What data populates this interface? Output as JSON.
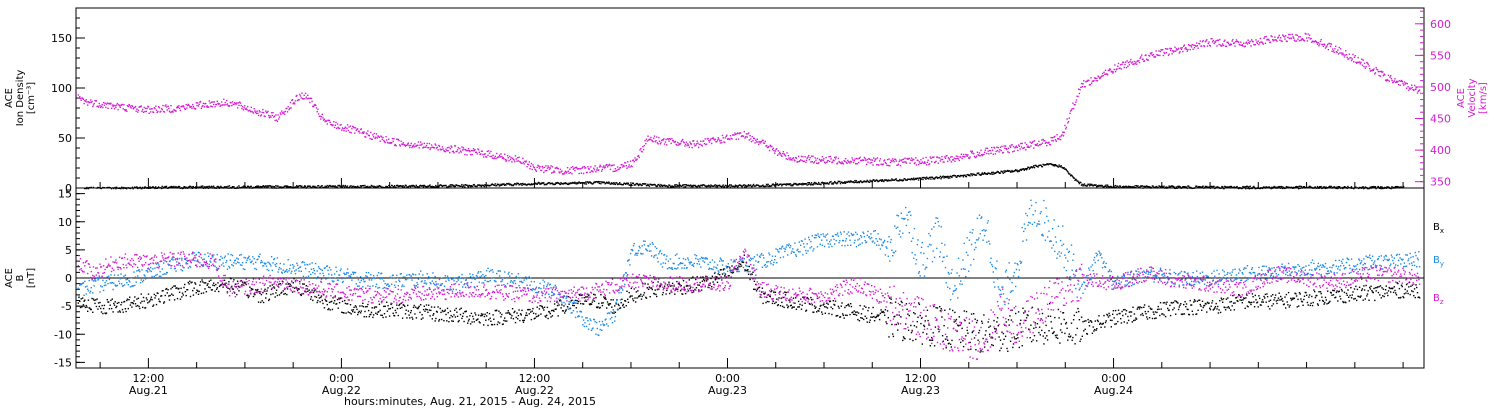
{
  "figure": {
    "footer_label": "hours:minutes, Aug. 21, 2015 - Aug. 24, 2015"
  },
  "colors": {
    "black": "#000000",
    "magenta": "#d21ed2",
    "blue": "#1e8ce6"
  },
  "chart_data": [
    {
      "type": "scatter",
      "panel": "ion-density-and-velocity",
      "ylabel_lines": [
        "ACE",
        "Ion Density",
        "[cm⁻³]"
      ],
      "ylim": [
        0,
        180
      ],
      "yticks": [
        0,
        50,
        100,
        150
      ],
      "right_axis": {
        "label_lines": [
          "ACE",
          "Velocity",
          "[km/s]"
        ],
        "ylim": [
          340,
          625
        ],
        "yticks": [
          350,
          400,
          450,
          500,
          550,
          600
        ]
      },
      "x_unit": "hours since Aug. 21, 2015 00:00",
      "xlim": [
        7.5,
        91.3
      ],
      "zero_line": 0,
      "series": [
        {
          "color": "black",
          "axis": "left",
          "points": [
            [
              8,
              0
            ],
            [
              12,
              1
            ],
            [
              16,
              1.5
            ],
            [
              20,
              1.8
            ],
            [
              24,
              2
            ],
            [
              28,
              2.2
            ],
            [
              32,
              3
            ],
            [
              36,
              5
            ],
            [
              40,
              6
            ],
            [
              44,
              3
            ],
            [
              48,
              2.5
            ],
            [
              52,
              4
            ],
            [
              56,
              7
            ],
            [
              60,
              10
            ],
            [
              62,
              12
            ],
            [
              64,
              15
            ],
            [
              66,
              18
            ],
            [
              67,
              22
            ],
            [
              68,
              24
            ],
            [
              68.8,
              22
            ],
            [
              69.5,
              10
            ],
            [
              70,
              4
            ],
            [
              72,
              2
            ],
            [
              76,
              1.5
            ],
            [
              80,
              1.2
            ],
            [
              84,
              1.2
            ],
            [
              88,
              1
            ],
            [
              90,
              1
            ]
          ]
        },
        {
          "color": "magenta",
          "axis": "right",
          "points": [
            [
              7.6,
              485
            ],
            [
              8,
              478
            ],
            [
              10,
              470
            ],
            [
              12,
              465
            ],
            [
              14,
              468
            ],
            [
              16,
              475
            ],
            [
              17,
              476
            ],
            [
              18,
              468
            ],
            [
              19,
              460
            ],
            [
              20,
              452
            ],
            [
              21,
              478
            ],
            [
              21.5,
              488
            ],
            [
              22,
              482
            ],
            [
              22.5,
              460
            ],
            [
              23,
              445
            ],
            [
              25,
              430
            ],
            [
              27,
              415
            ],
            [
              29,
              408
            ],
            [
              31,
              402
            ],
            [
              33,
              395
            ],
            [
              35,
              385
            ],
            [
              36,
              373
            ],
            [
              38,
              368
            ],
            [
              40,
              372
            ],
            [
              41,
              373
            ],
            [
              42,
              380
            ],
            [
              42.5,
              396
            ],
            [
              43,
              420
            ],
            [
              44,
              415
            ],
            [
              46,
              410
            ],
            [
              48,
              420
            ],
            [
              49,
              425
            ],
            [
              50,
              415
            ],
            [
              51,
              398
            ],
            [
              52,
              388
            ],
            [
              54,
              385
            ],
            [
              56,
              385
            ],
            [
              58,
              382
            ],
            [
              60,
              383
            ],
            [
              62,
              388
            ],
            [
              64,
              398
            ],
            [
              66,
              405
            ],
            [
              67,
              410
            ],
            [
              68,
              415
            ],
            [
              68.8,
              425
            ],
            [
              69.2,
              455
            ],
            [
              69.6,
              480
            ],
            [
              70,
              505
            ],
            [
              71,
              515
            ],
            [
              72,
              530
            ],
            [
              73,
              540
            ],
            [
              74,
              548
            ],
            [
              75,
              555
            ],
            [
              76,
              560
            ],
            [
              78,
              572
            ],
            [
              80,
              570
            ],
            [
              82,
              577
            ],
            [
              84,
              580
            ],
            [
              86,
              558
            ],
            [
              87,
              545
            ],
            [
              88,
              530
            ],
            [
              89,
              515
            ],
            [
              90,
              505
            ],
            [
              91,
              495
            ]
          ]
        }
      ]
    },
    {
      "type": "scatter",
      "panel": "magnetic-field",
      "ylabel_lines": [
        "ACE",
        "B",
        "[nT]"
      ],
      "ylim": [
        -16,
        16
      ],
      "yticks": [
        -15,
        -10,
        -5,
        0,
        5,
        10,
        15
      ],
      "x_unit": "hours since Aug. 21, 2015 00:00",
      "xlim": [
        7.5,
        91.3
      ],
      "zero_line": 0,
      "legend": {
        "placement": "right",
        "entries": [
          {
            "label": "B",
            "subscript": "x",
            "color": "black"
          },
          {
            "label": "B",
            "subscript": "y",
            "color": "blue"
          },
          {
            "label": "B",
            "subscript": "z",
            "color": "magenta"
          }
        ]
      },
      "series": [
        {
          "subscript": "x",
          "color": "black",
          "points": [
            [
              7.6,
              -4
            ],
            [
              9,
              -5
            ],
            [
              11,
              -4.5
            ],
            [
              13,
              -3
            ],
            [
              15,
              -1.5
            ],
            [
              17,
              -1
            ],
            [
              19,
              -3
            ],
            [
              20,
              -2
            ],
            [
              21,
              -1
            ],
            [
              23,
              -4
            ],
            [
              25,
              -5.5
            ],
            [
              27,
              -5.5
            ],
            [
              29,
              -6
            ],
            [
              31,
              -6.5
            ],
            [
              33,
              -7
            ],
            [
              35,
              -6.5
            ],
            [
              37,
              -6
            ],
            [
              38,
              -4.5
            ],
            [
              39,
              -4
            ],
            [
              40,
              -4
            ],
            [
              41,
              -5
            ],
            [
              42,
              -3
            ],
            [
              43,
              -2
            ],
            [
              45,
              -1.5
            ],
            [
              47,
              -0.5
            ],
            [
              48,
              1
            ],
            [
              49,
              3
            ],
            [
              50,
              -3
            ],
            [
              52,
              -4
            ],
            [
              54,
              -5
            ],
            [
              56,
              -6
            ],
            [
              58,
              -7
            ],
            [
              60,
              -8
            ],
            [
              62,
              -9
            ],
            [
              64,
              -10
            ],
            [
              66,
              -9
            ],
            [
              68,
              -8
            ],
            [
              70,
              -9
            ],
            [
              72,
              -7
            ],
            [
              74,
              -6
            ],
            [
              76,
              -5
            ],
            [
              78,
              -5
            ],
            [
              80,
              -4
            ],
            [
              82,
              -4
            ],
            [
              84,
              -3.5
            ],
            [
              86,
              -3
            ],
            [
              88,
              -2.5
            ],
            [
              90,
              -2
            ],
            [
              91,
              -2
            ]
          ]
        },
        {
          "subscript": "y",
          "color": "blue",
          "points": [
            [
              7.6,
              -2
            ],
            [
              9,
              -1
            ],
            [
              11,
              0
            ],
            [
              13,
              2
            ],
            [
              15,
              3.5
            ],
            [
              17,
              3
            ],
            [
              19,
              3
            ],
            [
              21,
              2
            ],
            [
              23,
              1
            ],
            [
              25,
              0
            ],
            [
              27,
              -0.5
            ],
            [
              29,
              0
            ],
            [
              31,
              -1
            ],
            [
              33,
              0.5
            ],
            [
              35,
              -0.5
            ],
            [
              37,
              -2
            ],
            [
              38,
              -4
            ],
            [
              39,
              -7
            ],
            [
              40,
              -9
            ],
            [
              41,
              -6
            ],
            [
              42,
              5
            ],
            [
              43,
              6
            ],
            [
              44,
              3
            ],
            [
              46,
              3
            ],
            [
              48,
              2
            ],
            [
              50,
              3
            ],
            [
              52,
              5
            ],
            [
              54,
              7
            ],
            [
              56,
              7
            ],
            [
              57,
              7.5
            ],
            [
              58,
              5
            ],
            [
              59,
              12
            ],
            [
              60,
              3
            ],
            [
              61,
              8
            ],
            [
              62,
              -2
            ],
            [
              63,
              5
            ],
            [
              64,
              10
            ],
            [
              65,
              -4
            ],
            [
              66,
              3
            ],
            [
              67,
              13
            ],
            [
              68,
              9
            ],
            [
              69,
              5
            ],
            [
              70,
              -2
            ],
            [
              71,
              4
            ],
            [
              72,
              -1
            ],
            [
              74,
              1
            ],
            [
              76,
              0
            ],
            [
              78,
              0
            ],
            [
              80,
              1
            ],
            [
              82,
              1
            ],
            [
              84,
              2
            ],
            [
              86,
              2
            ],
            [
              88,
              3
            ],
            [
              90,
              3
            ],
            [
              91,
              3.5
            ]
          ]
        },
        {
          "subscript": "z",
          "color": "magenta",
          "points": [
            [
              7.6,
              3
            ],
            [
              8.5,
              1
            ],
            [
              10,
              3
            ],
            [
              12,
              3
            ],
            [
              14,
              3.5
            ],
            [
              16,
              3
            ],
            [
              17,
              -2
            ],
            [
              18,
              -1.5
            ],
            [
              20,
              -0.5
            ],
            [
              21,
              -1
            ],
            [
              22,
              -1.5
            ],
            [
              24,
              -2.5
            ],
            [
              26,
              -3
            ],
            [
              28,
              -3
            ],
            [
              30,
              -2.5
            ],
            [
              32,
              -2
            ],
            [
              34,
              -2.5
            ],
            [
              36,
              -3
            ],
            [
              38,
              -3
            ],
            [
              40,
              -2
            ],
            [
              42,
              -0.5
            ],
            [
              44,
              -1
            ],
            [
              46,
              -1
            ],
            [
              48,
              -1
            ],
            [
              49,
              5
            ],
            [
              50,
              -2
            ],
            [
              52,
              -3
            ],
            [
              54,
              -3
            ],
            [
              56,
              -1
            ],
            [
              58,
              -4
            ],
            [
              60,
              -7
            ],
            [
              62,
              -10
            ],
            [
              64,
              -11
            ],
            [
              65,
              -5
            ],
            [
              66,
              -9
            ],
            [
              67,
              -6
            ],
            [
              68,
              -4
            ],
            [
              70,
              0
            ],
            [
              72,
              -1
            ],
            [
              74,
              1
            ],
            [
              76,
              -0.5
            ],
            [
              78,
              -1
            ],
            [
              80,
              -2
            ],
            [
              82,
              1
            ],
            [
              84,
              0
            ],
            [
              86,
              -0.5
            ],
            [
              88,
              1
            ],
            [
              90,
              0.5
            ],
            [
              91,
              0
            ]
          ]
        }
      ]
    }
  ],
  "x_axis": {
    "ticks": [
      {
        "hour": 12,
        "time": "12:00",
        "date": "Aug.21"
      },
      {
        "hour": 24,
        "time": "0:00",
        "date": "Aug.22"
      },
      {
        "hour": 36,
        "time": "12:00",
        "date": "Aug.22"
      },
      {
        "hour": 48,
        "time": "0:00",
        "date": "Aug.23"
      },
      {
        "hour": 60,
        "time": "12:00",
        "date": "Aug.23"
      },
      {
        "hour": 72,
        "time": "0:00",
        "date": "Aug.24"
      }
    ]
  }
}
